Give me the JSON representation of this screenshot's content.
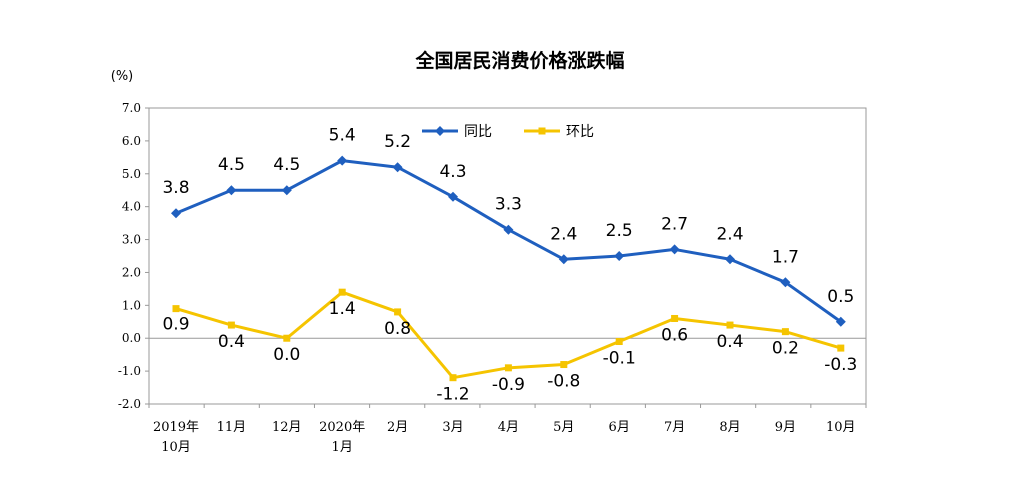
{
  "chart_data": {
    "type": "line",
    "title": "全国居民消费价格涨跌幅",
    "ylabel": "(%)",
    "xlabel": "",
    "ylim": [
      -2.0,
      7.0
    ],
    "ystep": 1.0,
    "yticks": [
      "7.0",
      "6.0",
      "5.0",
      "4.0",
      "3.0",
      "2.0",
      "1.0",
      "0.0",
      "-1.0",
      "-2.0"
    ],
    "categories": [
      [
        "2019年",
        "10月"
      ],
      [
        "11月"
      ],
      [
        "12月"
      ],
      [
        "2020年",
        "1月"
      ],
      [
        "2月"
      ],
      [
        "3月"
      ],
      [
        "4月"
      ],
      [
        "5月"
      ],
      [
        "6月"
      ],
      [
        "7月"
      ],
      [
        "8月"
      ],
      [
        "9月"
      ],
      [
        "10月"
      ]
    ],
    "series": [
      {
        "name": "同比",
        "color": "#1f5fbf",
        "marker": "diamond",
        "values": [
          3.8,
          4.5,
          4.5,
          5.4,
          5.2,
          4.3,
          3.3,
          2.4,
          2.5,
          2.7,
          2.4,
          1.7,
          0.5
        ],
        "labels": [
          "3.8",
          "4.5",
          "4.5",
          "5.4",
          "5.2",
          "4.3",
          "3.3",
          "2.4",
          "2.5",
          "2.7",
          "2.4",
          "1.7",
          "0.5"
        ]
      },
      {
        "name": "环比",
        "color": "#f5c400",
        "marker": "square",
        "values": [
          0.9,
          0.4,
          0.0,
          1.4,
          0.8,
          -1.2,
          -0.9,
          -0.8,
          -0.1,
          0.6,
          0.4,
          0.2,
          -0.3
        ],
        "labels": [
          "0.9",
          "0.4",
          "0.0",
          "1.4",
          "0.8",
          "-1.2",
          "-0.9",
          "-0.8",
          "-0.1",
          "0.6",
          "0.4",
          "0.2",
          "-0.3"
        ]
      }
    ],
    "legend_position": "top-center",
    "grid": false
  }
}
